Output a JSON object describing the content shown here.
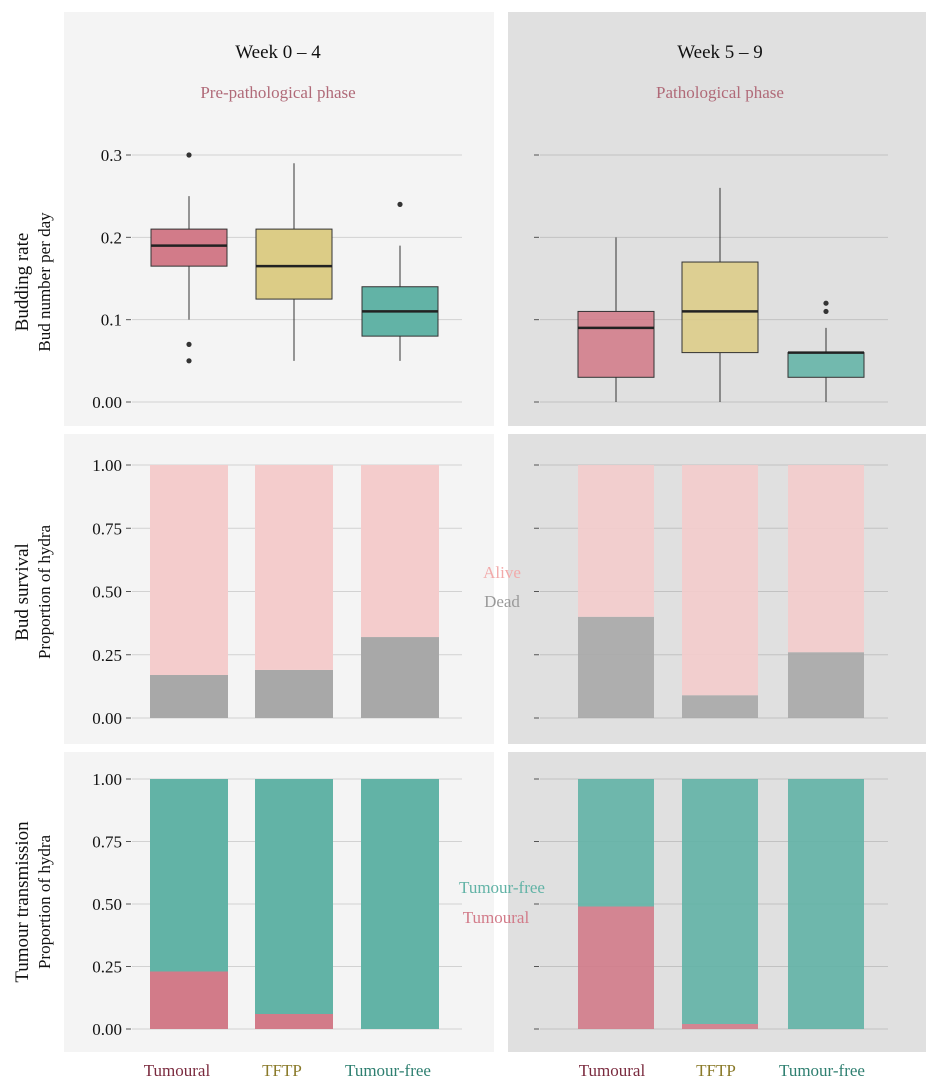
{
  "columns": [
    {
      "title": "Week 0 – 4",
      "phase": "Pre-pathological phase"
    },
    {
      "title": "Week 5 – 9",
      "phase": "Pathological phase"
    }
  ],
  "rows": [
    {
      "title": "Budding rate",
      "subtitle": "Bud number per day"
    },
    {
      "title": "Bud survival",
      "subtitle": "Proportion of hydra"
    },
    {
      "title": "Tumour transmission",
      "subtitle": "Proportion of hydra"
    }
  ],
  "categories": [
    "Tumoural",
    "TFTP",
    "Tumour-free"
  ],
  "colors": {
    "panel_left": "#f4f4f4",
    "panel_right": "#e0e0e0",
    "tumoural": "#d27b89",
    "tftp": "#dccc86",
    "tumour_free": "#62b3a6",
    "alive": "#f4cccc",
    "dead": "#a8a8a8",
    "phase_text": "#b06a78",
    "cat_tumoural": "#7a2a3e",
    "cat_tftp": "#8a7a2a",
    "cat_tumour_free": "#2e7f70"
  },
  "legends": {
    "survival": [
      "Alive",
      "Dead"
    ],
    "transmission": [
      "Tumour-free",
      "Tumoural"
    ]
  },
  "chart_data": [
    {
      "type": "box",
      "panel": "Budding rate – Week 0 – 4",
      "ylim": [
        0,
        0.3
      ],
      "yticks": [
        "0.00",
        "0.1",
        "0.2",
        "0.3"
      ],
      "ytick_values": [
        0,
        0.1,
        0.2,
        0.3
      ],
      "boxes": [
        {
          "category": "Tumoural",
          "whisker_low": 0.1,
          "q1": 0.165,
          "median": 0.19,
          "q3": 0.21,
          "whisker_high": 0.25,
          "outliers": [
            0.3,
            0.07,
            0.05
          ]
        },
        {
          "category": "TFTP",
          "whisker_low": 0.05,
          "q1": 0.125,
          "median": 0.165,
          "q3": 0.21,
          "whisker_high": 0.29,
          "outliers": []
        },
        {
          "category": "Tumour-free",
          "whisker_low": 0.05,
          "q1": 0.08,
          "median": 0.11,
          "q3": 0.14,
          "whisker_high": 0.19,
          "outliers": [
            0.24
          ]
        }
      ]
    },
    {
      "type": "box",
      "panel": "Budding rate – Week 5 – 9",
      "ylim": [
        0,
        0.3
      ],
      "ytick_values": [
        0,
        0.1,
        0.2,
        0.3
      ],
      "boxes": [
        {
          "category": "Tumoural",
          "whisker_low": 0,
          "q1": 0.03,
          "median": 0.09,
          "q3": 0.11,
          "whisker_high": 0.2,
          "outliers": []
        },
        {
          "category": "TFTP",
          "whisker_low": 0,
          "q1": 0.06,
          "median": 0.11,
          "q3": 0.17,
          "whisker_high": 0.26,
          "outliers": []
        },
        {
          "category": "Tumour-free",
          "whisker_low": 0,
          "q1": 0.03,
          "median": 0.06,
          "q3": 0.06,
          "whisker_high": 0.09,
          "outliers": [
            0.12,
            0.11
          ]
        }
      ]
    },
    {
      "type": "stacked-bar",
      "panel": "Bud survival – Week 0 – 4",
      "ylim": [
        0,
        1
      ],
      "yticks": [
        "0.00",
        "0.25",
        "0.50",
        "0.75",
        "1.00"
      ],
      "ytick_values": [
        0,
        0.25,
        0.5,
        0.75,
        1
      ],
      "series": [
        {
          "name": "Dead",
          "values": [
            0.17,
            0.19,
            0.32
          ]
        },
        {
          "name": "Alive",
          "values": [
            0.83,
            0.81,
            0.68
          ]
        }
      ]
    },
    {
      "type": "stacked-bar",
      "panel": "Bud survival – Week 5 – 9",
      "ylim": [
        0,
        1
      ],
      "ytick_values": [
        0,
        0.25,
        0.5,
        0.75,
        1
      ],
      "series": [
        {
          "name": "Dead",
          "values": [
            0.4,
            0.09,
            0.26
          ]
        },
        {
          "name": "Alive",
          "values": [
            0.6,
            0.91,
            0.74
          ]
        }
      ]
    },
    {
      "type": "stacked-bar",
      "panel": "Tumour transmission – Week 0 – 4",
      "ylim": [
        0,
        1
      ],
      "yticks": [
        "0.00",
        "0.25",
        "0.50",
        "0.75",
        "1.00"
      ],
      "ytick_values": [
        0,
        0.25,
        0.5,
        0.75,
        1
      ],
      "series": [
        {
          "name": "Tumoural",
          "values": [
            0.23,
            0.06,
            0
          ]
        },
        {
          "name": "Tumour-free",
          "values": [
            0.77,
            0.94,
            1
          ]
        }
      ]
    },
    {
      "type": "stacked-bar",
      "panel": "Tumour transmission – Week 5 – 9",
      "ylim": [
        0,
        1
      ],
      "ytick_values": [
        0,
        0.25,
        0.5,
        0.75,
        1
      ],
      "series": [
        {
          "name": "Tumoural",
          "values": [
            0.49,
            0.02,
            0
          ]
        },
        {
          "name": "Tumour-free",
          "values": [
            0.51,
            0.98,
            1
          ]
        }
      ]
    }
  ]
}
